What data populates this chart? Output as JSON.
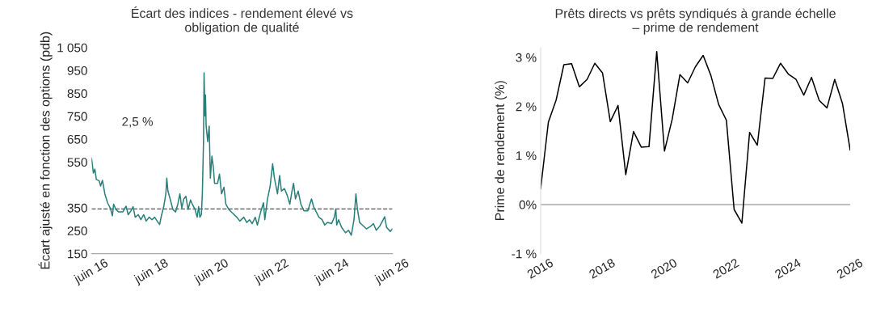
{
  "chart_data": [
    {
      "type": "line",
      "title": "Écart des indices - rendement élevé vs\nobligation de qualité",
      "ylabel": "Écart ajusté en fonction des options (pdb)",
      "annotations": [
        "2,5 %"
      ],
      "grid": false,
      "legend": false,
      "marker": "none",
      "line_style": "solid",
      "xlim": [
        "2016-06-01",
        "2026-06-01"
      ],
      "xticks": [
        {
          "value": "2016-06-01",
          "label": "juin 16"
        },
        {
          "value": "2018-06-01",
          "label": "juin 18"
        },
        {
          "value": "2020-06-01",
          "label": "juin 20"
        },
        {
          "value": "2022-06-01",
          "label": "juin 22"
        },
        {
          "value": "2024-06-01",
          "label": "juin 24"
        },
        {
          "value": "2026-06-01",
          "label": "juin 26"
        }
      ],
      "ylim": [
        150,
        1050
      ],
      "yticks": [
        150,
        250,
        350,
        550,
        650,
        750,
        850,
        950,
        {
          "value": 1050,
          "label": "1 050"
        }
      ],
      "ref_lines": [
        {
          "axis": "y",
          "value": 345,
          "color": "#555555",
          "line_style": "dashed"
        }
      ],
      "series": [
        {
          "color": "#2a7f7a",
          "x": [
            "2016-06-01",
            "2016-06-23",
            "2016-07-11",
            "2016-07-29",
            "2016-09-01",
            "2016-09-19",
            "2016-10-11",
            "2016-11-09",
            "2016-12-12",
            "2017-01-14",
            "2017-02-09",
            "2017-02-24",
            "2017-03-23",
            "2017-04-25",
            "2017-06-15",
            "2017-07-25",
            "2017-08-20",
            "2017-09-23",
            "2017-10-18",
            "2017-11-13",
            "2017-12-19",
            "2018-01-21",
            "2018-02-24",
            "2018-03-26",
            "2018-05-02",
            "2018-06-05",
            "2018-07-07",
            "2018-08-06",
            "2018-09-05",
            "2018-09-30",
            "2018-10-25",
            "2018-11-20",
            "2018-12-01",
            "2018-12-15",
            "2019-01-11",
            "2019-02-13",
            "2019-03-19",
            "2019-04-14",
            "2019-05-09",
            "2019-06-01",
            "2019-06-26",
            "2019-07-21",
            "2019-08-17",
            "2019-09-15",
            "2019-10-07",
            "2019-11-09",
            "2019-12-05",
            "2019-12-23",
            "2020-01-07",
            "2020-01-25",
            "2020-02-06",
            "2020-02-20",
            "2020-02-27",
            "2020-03-08",
            "2020-03-15",
            "2020-03-23",
            "2020-04-11",
            "2020-04-29",
            "2020-05-13",
            "2020-06-01",
            "2020-06-19",
            "2020-07-03",
            "2020-08-09",
            "2020-09-01",
            "2020-09-26",
            "2020-10-25",
            "2020-11-17",
            "2020-12-23",
            "2021-02-09",
            "2021-03-30",
            "2021-05-06",
            "2021-06-23",
            "2021-07-29",
            "2021-09-01",
            "2021-10-03",
            "2021-11-09",
            "2021-12-05",
            "2022-01-14",
            "2022-02-17",
            "2022-03-05",
            "2022-04-07",
            "2022-05-09",
            "2022-06-08",
            "2022-06-30",
            "2022-08-06",
            "2022-09-01",
            "2022-09-23",
            "2022-10-29",
            "2022-12-01",
            "2023-01-03",
            "2023-01-29",
            "2023-02-17",
            "2023-03-12",
            "2023-04-14",
            "2023-05-17",
            "2023-06-23",
            "2023-08-09",
            "2023-09-23",
            "2023-10-18",
            "2023-11-20",
            "2023-12-23",
            "2024-01-29",
            "2024-03-01",
            "2024-04-03",
            "2024-05-24",
            "2024-06-26",
            "2024-07-14",
            "2024-07-25",
            "2024-08-17",
            "2024-09-23",
            "2024-11-09",
            "2024-12-15",
            "2025-01-18",
            "2025-02-20",
            "2025-03-15",
            "2025-04-03",
            "2025-04-29",
            "2025-06-01",
            "2025-07-21",
            "2025-09-12",
            "2025-10-14",
            "2025-11-17",
            "2025-12-30",
            "2026-02-09",
            "2026-02-27",
            "2026-03-23",
            "2026-05-06",
            "2026-06-01"
          ],
          "values": [
            565,
            502,
            519,
            474,
            468,
            445,
            470,
            411,
            372,
            349,
            315,
            366,
            343,
            332,
            332,
            357,
            320,
            337,
            355,
            309,
            320,
            298,
            320,
            292,
            309,
            298,
            309,
            292,
            277,
            320,
            355,
            411,
            480,
            423,
            389,
            343,
            332,
            366,
            411,
            349,
            389,
            400,
            343,
            384,
            366,
            343,
            309,
            355,
            309,
            320,
            411,
            639,
            940,
            752,
            843,
            707,
            639,
            707,
            480,
            576,
            525,
            457,
            457,
            497,
            411,
            440,
            366,
            343,
            326,
            309,
            292,
            309,
            286,
            298,
            281,
            309,
            275,
            332,
            372,
            298,
            389,
            445,
            542,
            480,
            411,
            491,
            423,
            434,
            406,
            366,
            423,
            457,
            389,
            423,
            366,
            337,
            337,
            389,
            355,
            332,
            309,
            298,
            275,
            286,
            281,
            309,
            345,
            275,
            298,
            264,
            241,
            252,
            230,
            298,
            411,
            343,
            286,
            275,
            258,
            270,
            281,
            252,
            270,
            298,
            311,
            264,
            247,
            258
          ]
        }
      ]
    },
    {
      "type": "line",
      "title": "Prêts directs vs prêts syndiqués à grande échelle\n– prime de rendement",
      "ylabel": "Prime de rendement (%)",
      "grid": false,
      "legend": false,
      "marker": "none",
      "line_style": "solid",
      "xlim": [
        2016,
        2026
      ],
      "xticks": [
        2016,
        2018,
        2020,
        2022,
        2024,
        2026
      ],
      "ylim": [
        -1,
        3.2
      ],
      "yticks": [
        {
          "value": -1,
          "label": "-1 %"
        },
        {
          "value": 0,
          "label": "0%"
        },
        {
          "value": 1,
          "label": "1 %"
        },
        {
          "value": 2,
          "label": "2 %"
        },
        {
          "value": 3,
          "label": "3 %"
        }
      ],
      "ref_lines": [
        {
          "axis": "y",
          "value": 0,
          "color": "#aaaaaa",
          "line_style": "solid"
        }
      ],
      "series": [
        {
          "color": "#000000",
          "x": [
            2016.0,
            2016.25,
            2016.5,
            2016.75,
            2017.0,
            2017.25,
            2017.5,
            2017.75,
            2018.0,
            2018.25,
            2018.5,
            2018.75,
            2019.0,
            2019.25,
            2019.5,
            2019.75,
            2020.0,
            2020.25,
            2020.5,
            2020.75,
            2021.0,
            2021.25,
            2021.5,
            2021.75,
            2022.0,
            2022.25,
            2022.5,
            2022.75,
            2023.0,
            2023.25,
            2023.5,
            2023.75,
            2024.0,
            2024.25,
            2024.5,
            2024.75,
            2025.0,
            2025.25,
            2025.5,
            2025.75,
            2026.0
          ],
          "values": [
            0.32,
            1.68,
            2.13,
            2.85,
            2.87,
            2.4,
            2.55,
            2.88,
            2.68,
            1.69,
            2.02,
            0.61,
            1.49,
            1.17,
            1.18,
            3.12,
            1.09,
            1.74,
            2.65,
            2.48,
            2.81,
            3.04,
            2.63,
            2.04,
            1.72,
            -0.1,
            -0.38,
            1.47,
            1.21,
            2.58,
            2.57,
            2.88,
            2.66,
            2.55,
            2.23,
            2.59,
            2.12,
            1.97,
            2.55,
            2.06,
            1.11
          ]
        }
      ]
    }
  ]
}
